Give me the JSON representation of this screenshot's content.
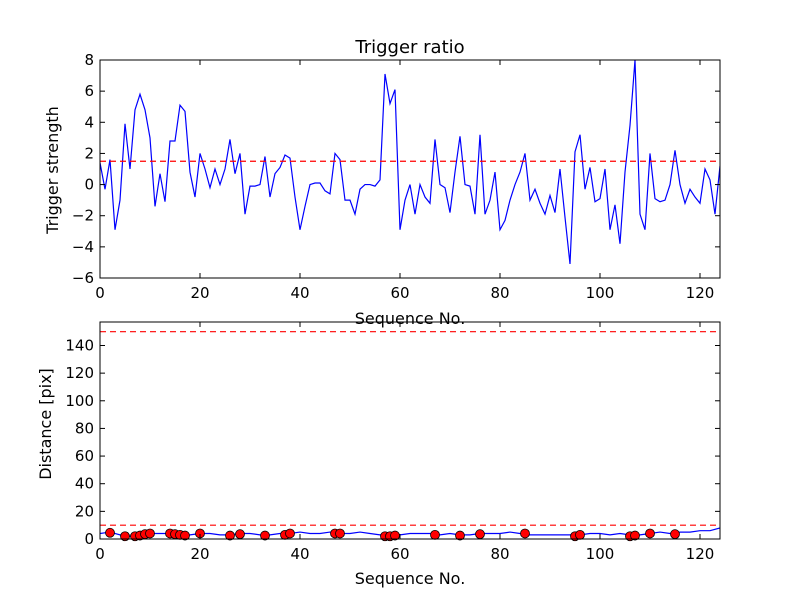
{
  "chart_data": [
    {
      "type": "line",
      "title": "Trigger ratio",
      "xlabel": "Sequence No.",
      "ylabel": "Trigger strength",
      "xlim": [
        0,
        124
      ],
      "ylim": [
        -6,
        8
      ],
      "xticks": [
        0,
        20,
        40,
        60,
        80,
        100,
        120
      ],
      "yticks": [
        -6,
        -4,
        -2,
        0,
        2,
        4,
        6,
        8
      ],
      "grid": false,
      "series": [
        {
          "kind": "line",
          "color": "#0000ff",
          "x": [
            0,
            1,
            2,
            3,
            4,
            5,
            6,
            7,
            8,
            9,
            10,
            11,
            12,
            13,
            14,
            15,
            16,
            17,
            18,
            19,
            20,
            21,
            22,
            23,
            24,
            25,
            26,
            27,
            28,
            29,
            30,
            31,
            32,
            33,
            34,
            35,
            36,
            37,
            38,
            39,
            40,
            41,
            42,
            43,
            44,
            45,
            46,
            47,
            48,
            49,
            50,
            51,
            52,
            53,
            54,
            55,
            56,
            57,
            58,
            59,
            60,
            61,
            62,
            63,
            64,
            65,
            66,
            67,
            68,
            69,
            70,
            71,
            72,
            73,
            74,
            75,
            76,
            77,
            78,
            79,
            80,
            81,
            82,
            83,
            84,
            85,
            86,
            87,
            88,
            89,
            90,
            91,
            92,
            93,
            94,
            95,
            96,
            97,
            98,
            99,
            100,
            101,
            102,
            103,
            104,
            105,
            106,
            107,
            108,
            109,
            110,
            111,
            112,
            113,
            114,
            115,
            116,
            117,
            118,
            119,
            120,
            121,
            122,
            123,
            124
          ],
          "y": [
            1.4,
            -0.3,
            1.6,
            -2.9,
            -1.0,
            3.9,
            1.0,
            4.8,
            5.8,
            4.8,
            3.0,
            -1.4,
            0.7,
            -1.1,
            2.8,
            2.8,
            5.1,
            4.7,
            0.8,
            -0.8,
            2.0,
            1.0,
            -0.2,
            1.0,
            0.0,
            1.0,
            2.9,
            0.7,
            2.0,
            -1.9,
            -0.1,
            -0.1,
            0.0,
            1.8,
            -0.8,
            0.7,
            1.1,
            1.9,
            1.7,
            -0.8,
            -2.9,
            -1.4,
            0.0,
            0.1,
            0.1,
            -0.4,
            -0.6,
            2.0,
            1.6,
            -1.0,
            -1.0,
            -1.9,
            -0.3,
            0.0,
            0.0,
            -0.1,
            0.3,
            7.1,
            5.2,
            6.1,
            -2.9,
            -1.0,
            0.0,
            -1.9,
            0.0,
            -0.8,
            -1.2,
            2.9,
            0.0,
            -0.2,
            -1.8,
            0.8,
            3.1,
            0.0,
            -0.1,
            -1.9,
            3.2,
            -1.9,
            -1.0,
            0.8,
            -2.9,
            -2.3,
            -1.0,
            0.0,
            0.8,
            2.0,
            -1.0,
            -0.3,
            -1.2,
            -1.9,
            -0.7,
            -1.8,
            1.0,
            -2.1,
            -5.1,
            2.1,
            3.2,
            -0.3,
            1.1,
            -1.1,
            -0.9,
            1.0,
            -2.9,
            -1.3,
            -3.8,
            0.8,
            3.8,
            8.0,
            -1.9,
            -2.9,
            2.0,
            -0.9,
            -1.1,
            -1.0,
            0.0,
            2.2,
            0.0,
            -1.2,
            -0.3,
            -0.8,
            -1.2,
            1.0,
            0.3,
            -1.9,
            1.2
          ]
        },
        {
          "kind": "hline",
          "color": "#ff0000",
          "style": "dashed",
          "y": 1.5
        }
      ]
    },
    {
      "type": "line",
      "title": "",
      "xlabel": "Sequence No.",
      "ylabel": "Distance [pix]",
      "xlim": [
        0,
        124
      ],
      "ylim": [
        0,
        157
      ],
      "xticks": [
        0,
        20,
        40,
        60,
        80,
        100,
        120
      ],
      "yticks": [
        0,
        20,
        40,
        60,
        80,
        100,
        120,
        140
      ],
      "grid": false,
      "series": [
        {
          "kind": "line",
          "color": "#0000ff",
          "x": [
            0,
            2,
            4,
            6,
            8,
            10,
            12,
            14,
            16,
            18,
            20,
            22,
            24,
            26,
            28,
            30,
            32,
            34,
            36,
            38,
            40,
            42,
            44,
            46,
            48,
            50,
            52,
            54,
            56,
            58,
            60,
            62,
            64,
            66,
            68,
            70,
            72,
            74,
            76,
            78,
            80,
            82,
            84,
            86,
            88,
            90,
            92,
            94,
            96,
            98,
            100,
            102,
            104,
            106,
            108,
            110,
            112,
            114,
            116,
            118,
            120,
            122,
            124
          ],
          "y": [
            4,
            5,
            3,
            2,
            3,
            4,
            4,
            4,
            3,
            3,
            4,
            4,
            3,
            3,
            4,
            4,
            3,
            3,
            4,
            4,
            5,
            4,
            4,
            5,
            4,
            4,
            5,
            4,
            3,
            3,
            3,
            4,
            4,
            4,
            3,
            4,
            3,
            3,
            4,
            4,
            4,
            5,
            4,
            3,
            3,
            3,
            3,
            3,
            3,
            4,
            4,
            3,
            4,
            3,
            3,
            4,
            5,
            4,
            5,
            5,
            6,
            6,
            8
          ]
        },
        {
          "kind": "scatter",
          "color": "#ff0000",
          "x": [
            2,
            5,
            7,
            8,
            9,
            10,
            14,
            15,
            16,
            17,
            20,
            26,
            28,
            33,
            37,
            38,
            47,
            48,
            57,
            58,
            59,
            67,
            72,
            76,
            85,
            95,
            96,
            106,
            107,
            110,
            115
          ],
          "y": [
            4.5,
            2.0,
            2.0,
            2.5,
            3.5,
            4.0,
            4.0,
            3.5,
            3.0,
            2.5,
            4.0,
            2.5,
            3.5,
            2.5,
            3.0,
            4.0,
            4.0,
            4.0,
            2.0,
            2.0,
            2.5,
            3.0,
            2.5,
            3.5,
            4.0,
            2.0,
            3.0,
            2.0,
            2.5,
            4.0,
            3.5
          ]
        },
        {
          "kind": "hline",
          "color": "#ff0000",
          "style": "dashed",
          "y": 150
        },
        {
          "kind": "hline",
          "color": "#ff0000",
          "style": "dashed",
          "y": 10
        }
      ]
    }
  ]
}
